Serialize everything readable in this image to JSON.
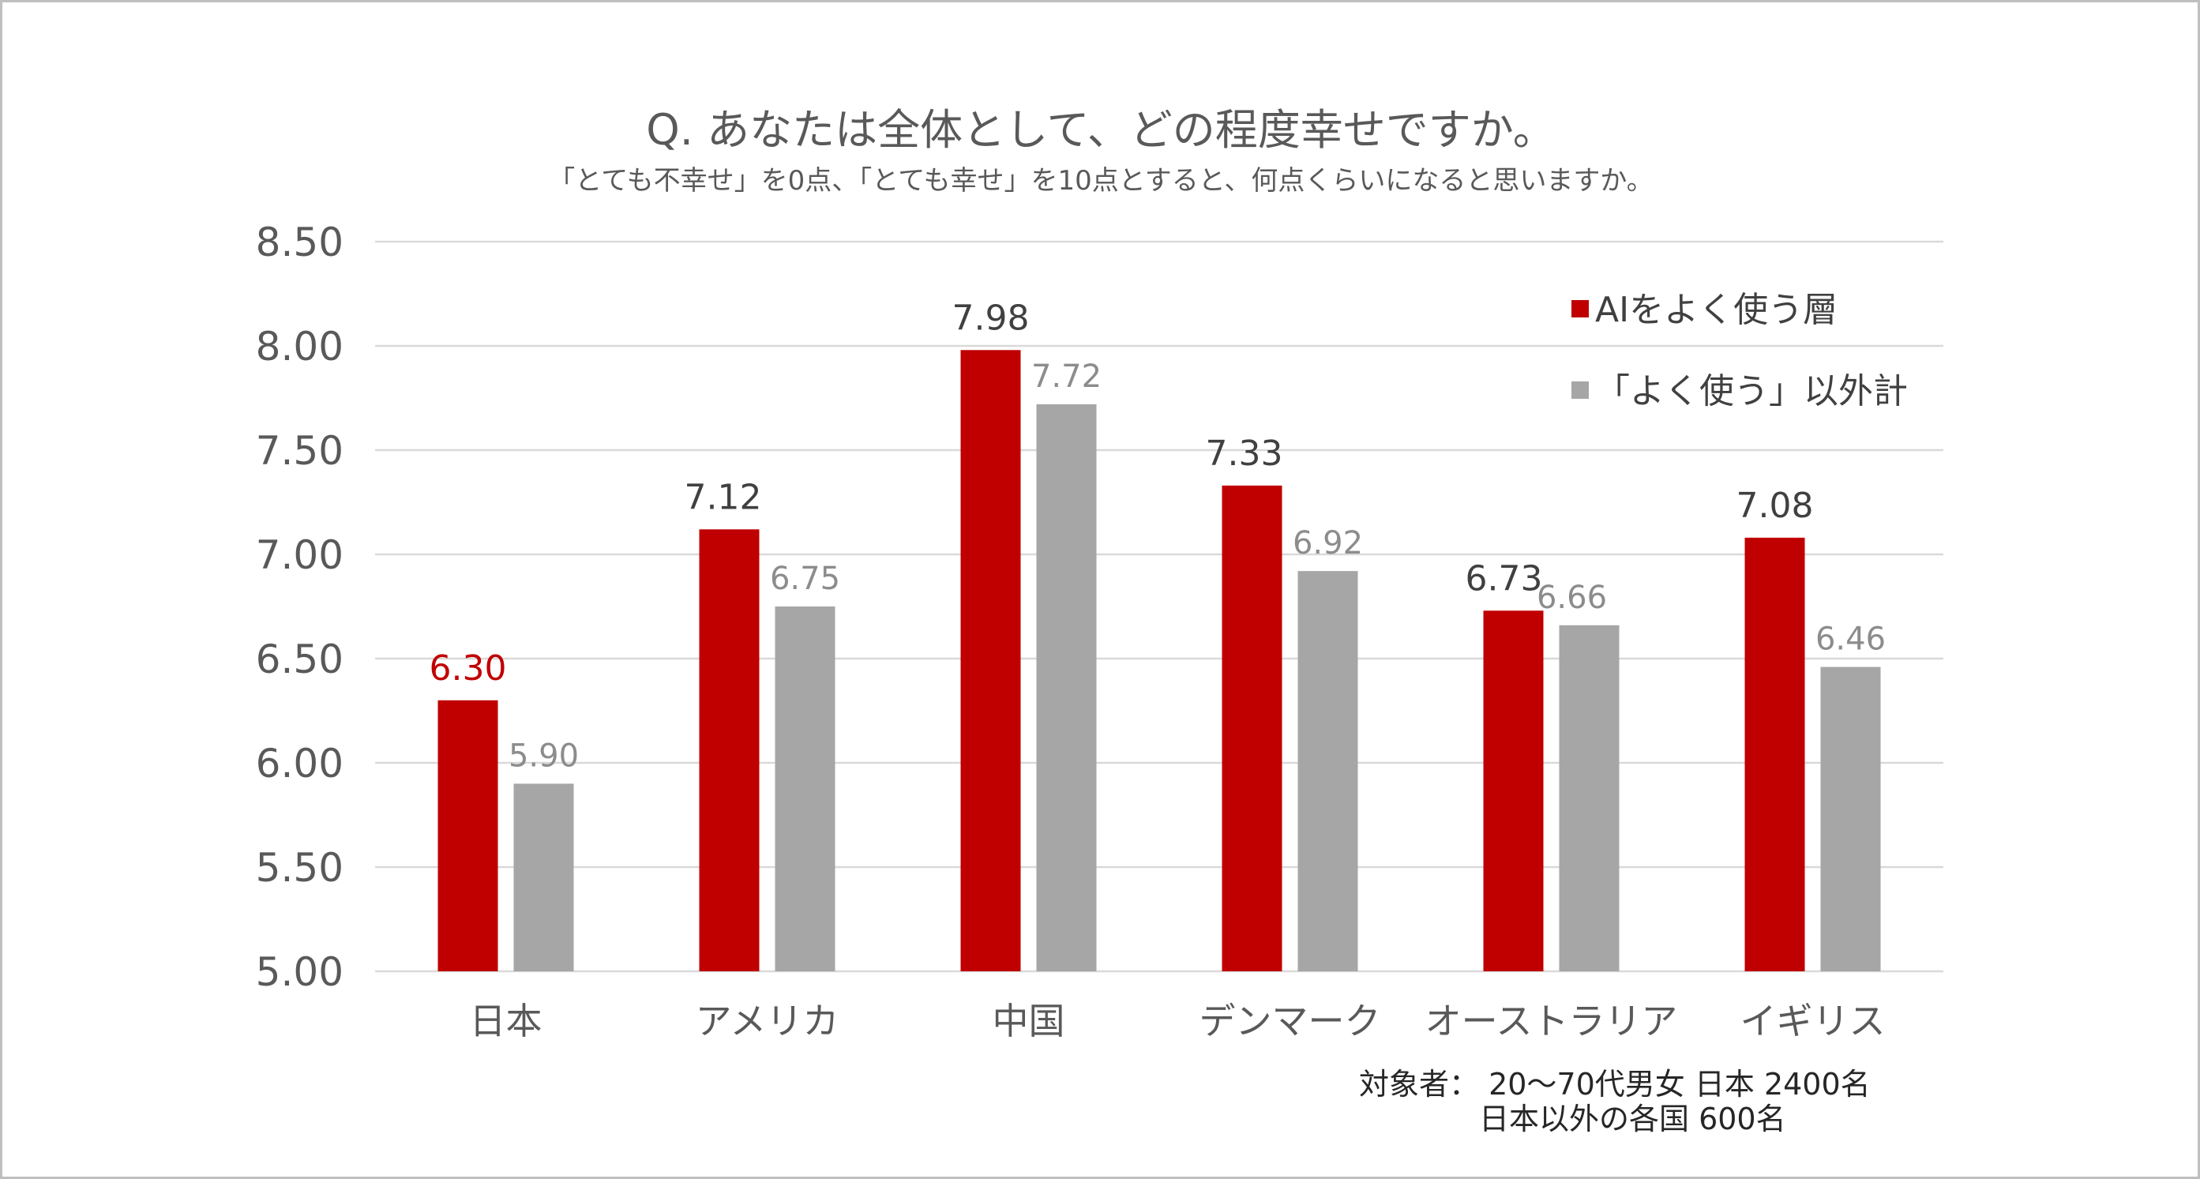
{
  "chart_data": {
    "type": "bar",
    "title": "Q. あなたは全体として、どの程度幸せですか。",
    "subtitle": "「とても不幸せ」を0点、「とても幸せ」を10点とすると、何点くらいになると思いますか。",
    "categories": [
      "日本",
      "アメリカ",
      "中国",
      "デンマーク",
      "オーストラリア",
      "イギリス"
    ],
    "series": [
      {
        "name": "AIをよく使う層",
        "color": "#c00000",
        "values": [
          6.3,
          7.12,
          7.98,
          7.33,
          6.73,
          7.08
        ],
        "labels": [
          "6.30",
          "7.12",
          "7.98",
          "7.33",
          "6.73",
          "7.08"
        ]
      },
      {
        "name": "「よく使う」以外計",
        "color": "#a6a6a6",
        "values": [
          5.9,
          6.75,
          7.72,
          6.92,
          6.66,
          6.46
        ],
        "labels": [
          "5.90",
          "6.75",
          "7.72",
          "6.92",
          "6.66",
          "6.46"
        ]
      }
    ],
    "ylim": [
      5.0,
      8.5
    ],
    "yticks": [
      "5.00",
      "5.50",
      "6.00",
      "6.50",
      "7.00",
      "7.50",
      "8.00",
      "8.50"
    ],
    "grid": true,
    "legend_position": "top-right",
    "xlabel": "",
    "ylabel": ""
  },
  "note": {
    "line1": "対象者： 20～70代男女  日本  2400名",
    "line2": "日本以外の各国  600名"
  }
}
